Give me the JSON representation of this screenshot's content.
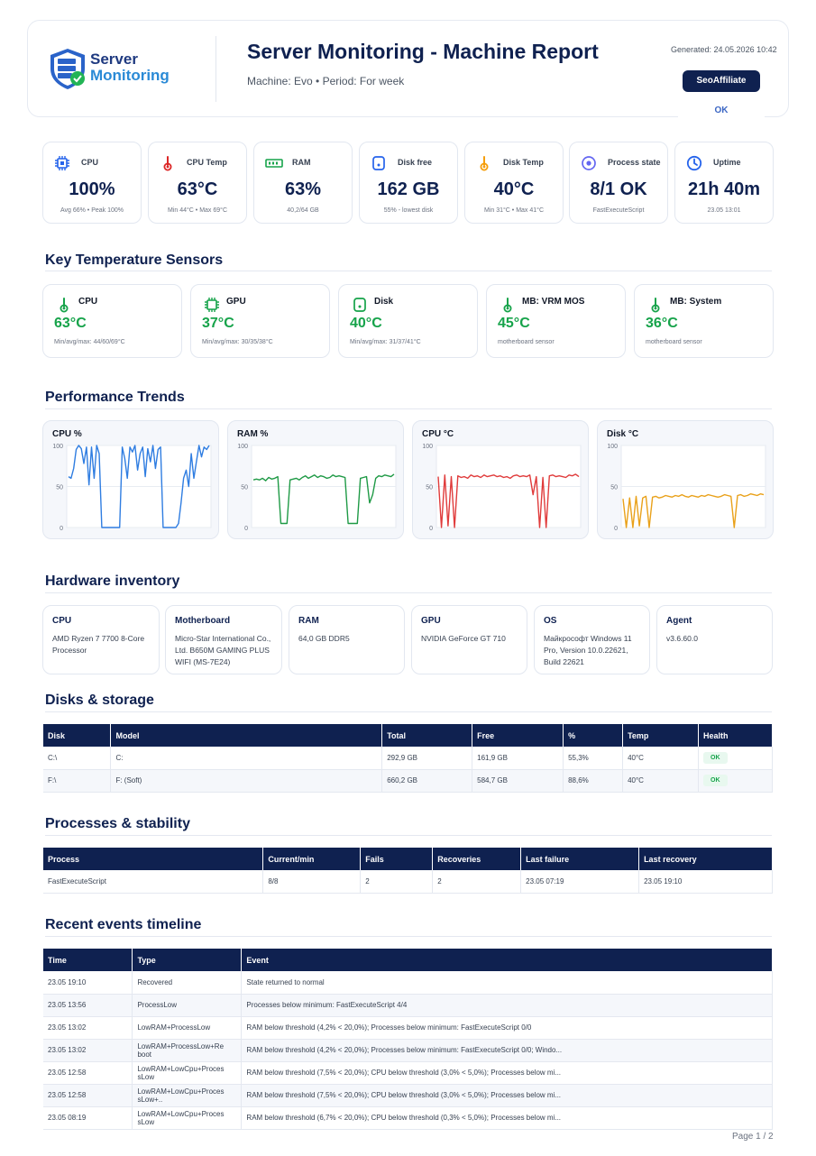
{
  "header": {
    "logo_line1": "Server",
    "logo_line2": "Monitoring",
    "title": "Server Monitoring - Machine Report",
    "subtitle": "Machine: Evo  •  Period: For week",
    "generated": "Generated: 24.05.2026 10:42",
    "brand_button": "SeoAffiliate",
    "status": "OK"
  },
  "kpis": [
    {
      "label": "CPU",
      "value": "100%",
      "sub": "Avg 66% • Peak 100%",
      "icon": "cpu-icon",
      "color": "#2563eb"
    },
    {
      "label": "CPU Temp",
      "value": "63°C",
      "sub": "Min 44°C • Max 69°C",
      "icon": "thermometer-icon",
      "color": "#dc2626"
    },
    {
      "label": "RAM",
      "value": "63%",
      "sub": "40,2/64 GB",
      "icon": "ram-icon",
      "color": "#16a34a"
    },
    {
      "label": "Disk free",
      "value": "162 GB",
      "sub": "55% - lowest disk",
      "icon": "disk-icon",
      "color": "#2563eb"
    },
    {
      "label": "Disk Temp",
      "value": "40°C",
      "sub": "Min 31°C • Max 41°C",
      "icon": "thermometer-icon",
      "color": "#f59e0b"
    },
    {
      "label": "Process state",
      "value": "8/1 OK",
      "sub": "FastExecuteScript",
      "icon": "target-icon",
      "color": "#6366f1"
    },
    {
      "label": "Uptime",
      "value": "21h 40m",
      "sub": "23.05 13:01",
      "icon": "clock-icon",
      "color": "#2563eb"
    }
  ],
  "sections": {
    "sensors": "Key Temperature Sensors",
    "trends": "Performance Trends",
    "hardware": "Hardware inventory",
    "disks": "Disks & storage",
    "processes": "Processes & stability",
    "events": "Recent events timeline"
  },
  "sensors": [
    {
      "label": "CPU",
      "value": "63°C",
      "sub": "Min/avg/max: 44/60/69°C",
      "icon": "thermometer-icon"
    },
    {
      "label": "GPU",
      "value": "37°C",
      "sub": "Min/avg/max: 30/35/38°C",
      "icon": "chip-icon"
    },
    {
      "label": "Disk",
      "value": "40°C",
      "sub": "Min/avg/max: 31/37/41°C",
      "icon": "disk-icon"
    },
    {
      "label": "MB: VRM MOS",
      "value": "45°C",
      "sub": "motherboard sensor",
      "icon": "thermometer-icon"
    },
    {
      "label": "MB: System",
      "value": "36°C",
      "sub": "motherboard sensor",
      "icon": "thermometer-icon"
    }
  ],
  "chart_data": [
    {
      "type": "line",
      "title": "CPU %",
      "color": "#2f7de1",
      "ylim": [
        0,
        100
      ],
      "yticks": [
        "100",
        "50",
        "0"
      ],
      "series": [
        {
          "values": [
            62,
            60,
            72,
            95,
            100,
            96,
            78,
            98,
            52,
            98,
            60,
            100,
            90,
            0,
            0,
            0,
            0,
            0,
            0,
            0,
            0,
            98,
            84,
            60,
            98,
            92,
            100,
            70,
            90,
            98,
            62,
            96,
            80,
            100,
            72,
            95,
            98,
            0,
            0,
            0,
            0,
            0,
            0,
            5,
            30,
            60,
            70,
            50,
            90,
            60,
            80,
            100,
            86,
            98,
            95,
            100
          ]
        }
      ]
    },
    {
      "type": "line",
      "title": "RAM %",
      "color": "#1f9a46",
      "ylim": [
        0,
        100
      ],
      "yticks": [
        "100",
        "50",
        "0"
      ],
      "series": [
        {
          "values": [
            58,
            59,
            58,
            60,
            57,
            61,
            59,
            60,
            62,
            5,
            5,
            5,
            58,
            59,
            60,
            58,
            61,
            63,
            60,
            62,
            64,
            61,
            63,
            62,
            60,
            61,
            64,
            62,
            63,
            62,
            61,
            5,
            5,
            5,
            5,
            60,
            61,
            62,
            30,
            40,
            60,
            63,
            62,
            64,
            63,
            62,
            65
          ]
        }
      ]
    },
    {
      "type": "line",
      "title": "CPU °C",
      "color": "#e03b3b",
      "ylim": [
        0,
        100
      ],
      "yticks": [
        "100",
        "50",
        "0"
      ],
      "series": [
        {
          "values": [
            62,
            0,
            64,
            2,
            62,
            0,
            63,
            61,
            62,
            60,
            64,
            62,
            63,
            61,
            64,
            62,
            63,
            64,
            62,
            63,
            61,
            62,
            60,
            63,
            64,
            62,
            63,
            62,
            64,
            40,
            62,
            0,
            61,
            0,
            63,
            64,
            62,
            63,
            62,
            61,
            64,
            63,
            65,
            62
          ]
        }
      ]
    },
    {
      "type": "line",
      "title": "Disk °C",
      "color": "#e9a11a",
      "ylim": [
        0,
        100
      ],
      "yticks": [
        "100",
        "50",
        "0"
      ],
      "series": [
        {
          "values": [
            35,
            0,
            36,
            0,
            38,
            2,
            36,
            38,
            0,
            37,
            38,
            36,
            37,
            39,
            38,
            37,
            39,
            38,
            40,
            38,
            37,
            39,
            38,
            37,
            39,
            38,
            40,
            39,
            38,
            37,
            38,
            40,
            39,
            38,
            0,
            39,
            40,
            38,
            39,
            41,
            40,
            39,
            41,
            40
          ]
        }
      ]
    }
  ],
  "hardware": [
    {
      "label": "CPU",
      "text": "AMD Ryzen 7 7700 8-Core Processor"
    },
    {
      "label": "Motherboard",
      "text": "Micro-Star International Co., Ltd. B650M GAMING PLUS WIFI (MS-7E24)"
    },
    {
      "label": "RAM",
      "text": "64,0 GB DDR5"
    },
    {
      "label": "GPU",
      "text": "NVIDIA GeForce GT 710"
    },
    {
      "label": "OS",
      "text": "Майкрософт Windows 11 Pro, Version 10.0.22621, Build 22621"
    },
    {
      "label": "Agent",
      "text": "v3.6.60.0"
    }
  ],
  "disks": {
    "columns": [
      "Disk",
      "Model",
      "Total",
      "Free",
      "%",
      "Temp",
      "Health"
    ],
    "rows": [
      [
        "C:\\",
        "C:",
        "292,9 GB",
        "161,9 GB",
        "55,3%",
        "40°C",
        "OK"
      ],
      [
        "F:\\",
        "F: (Soft)",
        "660,2 GB",
        "584,7 GB",
        "88,6%",
        "40°C",
        "OK"
      ]
    ]
  },
  "processes": {
    "columns": [
      "Process",
      "Current/min",
      "Fails",
      "Recoveries",
      "Last failure",
      "Last recovery"
    ],
    "rows": [
      [
        "FastExecuteScript",
        "8/8",
        "2",
        "2",
        "23.05 07:19",
        "23.05 19:10"
      ]
    ]
  },
  "events": {
    "columns": [
      "Time",
      "Type",
      "Event"
    ],
    "rows": [
      [
        "23.05 19:10",
        "Recovered",
        "State returned to normal"
      ],
      [
        "23.05 13:56",
        "ProcessLow",
        "Processes below minimum: FastExecuteScript 4/4"
      ],
      [
        "23.05 13:02",
        "LowRAM+ProcessLow",
        "RAM below threshold (4,2% < 20,0%); Processes below minimum: FastExecuteScript 0/0"
      ],
      [
        "23.05 13:02",
        "LowRAM+ProcessLow+Re boot",
        "RAM below threshold (4,2% < 20,0%); Processes below minimum: FastExecuteScript 0/0; Windo..."
      ],
      [
        "23.05 12:58",
        "LowRAM+LowCpu+Proces sLow",
        "RAM below threshold (7,5% < 20,0%); CPU below threshold (3,0% < 5,0%); Processes below mi..."
      ],
      [
        "23.05 12:58",
        "LowRAM+LowCpu+Proces sLow+..",
        "RAM below threshold (7,5% < 20,0%); CPU below threshold (3,0% < 5,0%); Processes below mi..."
      ],
      [
        "23.05 08:19",
        "LowRAM+LowCpu+Proces sLow",
        "RAM below threshold (6,7% < 20,0%); CPU below threshold (0,3% < 5,0%); Processes below mi..."
      ]
    ]
  },
  "footer": {
    "page": "Page 1 / 2"
  }
}
